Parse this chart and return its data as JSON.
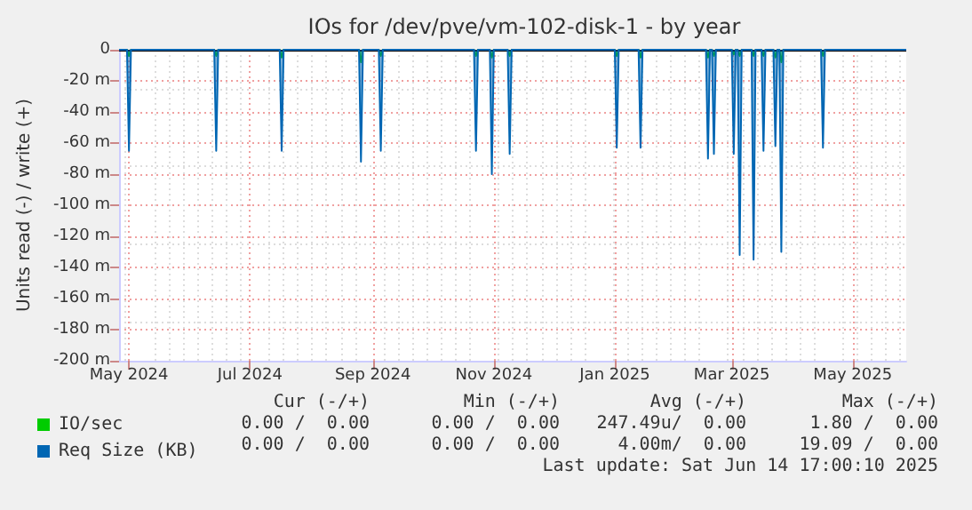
{
  "chart_data": {
    "type": "area",
    "title": "IOs for /dev/pve/vm-102-disk-1 - by year",
    "ylabel": "Units read (-) / write (+)",
    "x": [
      "2024-04-26",
      "2024-04-30",
      "2024-05-01",
      "2024-05-02",
      "2024-06-13",
      "2024-06-14",
      "2024-06-15",
      "2024-07-16",
      "2024-07-17",
      "2024-07-18",
      "2024-08-25",
      "2024-08-26",
      "2024-08-27",
      "2024-09-04",
      "2024-09-05",
      "2024-09-06",
      "2024-10-22",
      "2024-10-23",
      "2024-10-24",
      "2024-10-30",
      "2024-10-31",
      "2024-11-01",
      "2024-11-08",
      "2024-11-09",
      "2024-11-10",
      "2025-01-01",
      "2025-01-02",
      "2025-01-03",
      "2025-01-13",
      "2025-01-14",
      "2025-01-15",
      "2025-02-16",
      "2025-02-17",
      "2025-02-18",
      "2025-02-19",
      "2025-02-20",
      "2025-02-21",
      "2025-03-01",
      "2025-03-02",
      "2025-03-03",
      "2025-03-04",
      "2025-03-05",
      "2025-03-06",
      "2025-03-11",
      "2025-03-12",
      "2025-03-13",
      "2025-03-16",
      "2025-03-17",
      "2025-03-18",
      "2025-03-22",
      "2025-03-23",
      "2025-03-24",
      "2025-03-25",
      "2025-03-26",
      "2025-03-27",
      "2025-04-15",
      "2025-04-16",
      "2025-04-17",
      "2025-05-28"
    ],
    "series": [
      {
        "name": "Req Size (KB)",
        "color": "#0066b3",
        "values": [
          0,
          0,
          -65,
          0,
          0,
          -65,
          0,
          0,
          -65,
          0,
          0,
          -72,
          0,
          0,
          -65,
          0,
          0,
          -65,
          0,
          0,
          -80,
          0,
          0,
          -67,
          0,
          0,
          -63,
          0,
          0,
          -63,
          0,
          0,
          -70,
          0,
          0,
          -67,
          0,
          0,
          -67,
          0,
          0,
          -132,
          0,
          0,
          -135,
          0,
          0,
          -65,
          0,
          0,
          -62,
          0,
          0,
          -130,
          0,
          0,
          -63,
          0,
          0
        ]
      },
      {
        "name": "IO/sec",
        "color": "#00cc00",
        "values": [
          0,
          0,
          -4,
          0,
          0,
          -4,
          0,
          0,
          -5,
          0,
          0,
          -8,
          0,
          0,
          -4,
          0,
          0,
          -4,
          0,
          0,
          -5,
          0,
          0,
          -4,
          0,
          0,
          -4,
          0,
          0,
          -5,
          0,
          0,
          -5,
          0,
          0,
          -4,
          0,
          0,
          -3,
          0,
          0,
          -4,
          0,
          0,
          -4,
          0,
          0,
          -4,
          0,
          0,
          -5,
          0,
          0,
          -8,
          0,
          0,
          -4,
          0,
          0
        ]
      }
    ],
    "xlim": [
      "2024-04-26",
      "2025-05-28"
    ],
    "xticks": [
      {
        "value": "2024-05-01",
        "label": "May 2024"
      },
      {
        "value": "2024-07-01",
        "label": "Jul 2024"
      },
      {
        "value": "2024-09-01",
        "label": "Sep 2024"
      },
      {
        "value": "2024-11-01",
        "label": "Nov 2024"
      },
      {
        "value": "2025-01-01",
        "label": "Jan 2025"
      },
      {
        "value": "2025-03-01",
        "label": "Mar 2025"
      },
      {
        "value": "2025-05-01",
        "label": "May 2025"
      }
    ],
    "ylim": [
      -200,
      0
    ],
    "yticks": [
      0,
      {
        "value": -20,
        "label": "-20 m"
      },
      {
        "value": -40,
        "label": "-40 m"
      },
      {
        "value": -60,
        "label": "-60 m"
      },
      {
        "value": -80,
        "label": "-80 m"
      },
      {
        "value": -100,
        "label": "-100 m"
      },
      {
        "value": -120,
        "label": "-120 m"
      },
      {
        "value": -140,
        "label": "-140 m"
      },
      {
        "value": -160,
        "label": "-160 m"
      },
      {
        "value": -180,
        "label": "-180 m"
      },
      {
        "value": -200,
        "label": "-200 m"
      }
    ],
    "ref_lines": [
      {
        "axis": "y",
        "value": 0,
        "color": "#000000"
      }
    ],
    "grid": true,
    "legend": "bottom left",
    "marker": "none",
    "annotations": [
      "Cur (-/+)",
      "Min (-/+)",
      "Avg (-/+)",
      "Max (-/+)",
      "0.00 /  0.00",
      "0.00 /  0.00",
      "247.49u/  0.00",
      "1.80 /  0.00",
      "0.00 /  0.00",
      "0.00 /  0.00",
      "4.00m/  0.00",
      "19.09 /  0.00",
      "Last update: Sat Jun 14 17:00:10 2025"
    ]
  }
}
